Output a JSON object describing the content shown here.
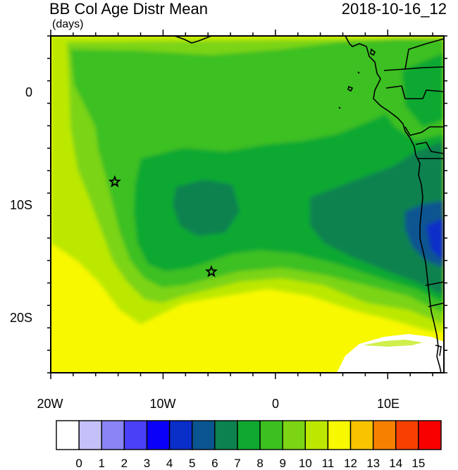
{
  "title": {
    "left": "BB Col Age Distr Mean",
    "right": "2018-10-16_12",
    "units": "(days)"
  },
  "map": {
    "lon_range": [
      -20,
      15
    ],
    "lat_range": [
      -25,
      5
    ],
    "x_ticks": [
      {
        "lon": -20,
        "label": "20W"
      },
      {
        "lon": -10,
        "label": "10W"
      },
      {
        "lon": 0,
        "label": "0"
      },
      {
        "lon": 10,
        "label": "10E"
      }
    ],
    "y_ticks": [
      {
        "lat": 0,
        "label": "0"
      },
      {
        "lat": -10,
        "label": "10S"
      },
      {
        "lat": -20,
        "label": "20S"
      }
    ],
    "markers": [
      {
        "name": "star",
        "lon": -14.3,
        "lat": -8.0
      },
      {
        "name": "star",
        "lon": -5.7,
        "lat": -16.0
      }
    ]
  },
  "colorbar": {
    "labels": [
      "0",
      "1",
      "2",
      "3",
      "4",
      "5",
      "6",
      "7",
      "8",
      "9",
      "10",
      "11",
      "12",
      "13",
      "14",
      "15"
    ],
    "colors": [
      "#ffffff",
      "#c4c0f8",
      "#8a84f6",
      "#4a40f8",
      "#0a00f8",
      "#0a2ec8",
      "#0a5490",
      "#0c8250",
      "#10a830",
      "#3cc020",
      "#7cd414",
      "#bce800",
      "#f8f800",
      "#f8c400",
      "#f88000",
      "#f84000",
      "#f80000"
    ]
  }
}
